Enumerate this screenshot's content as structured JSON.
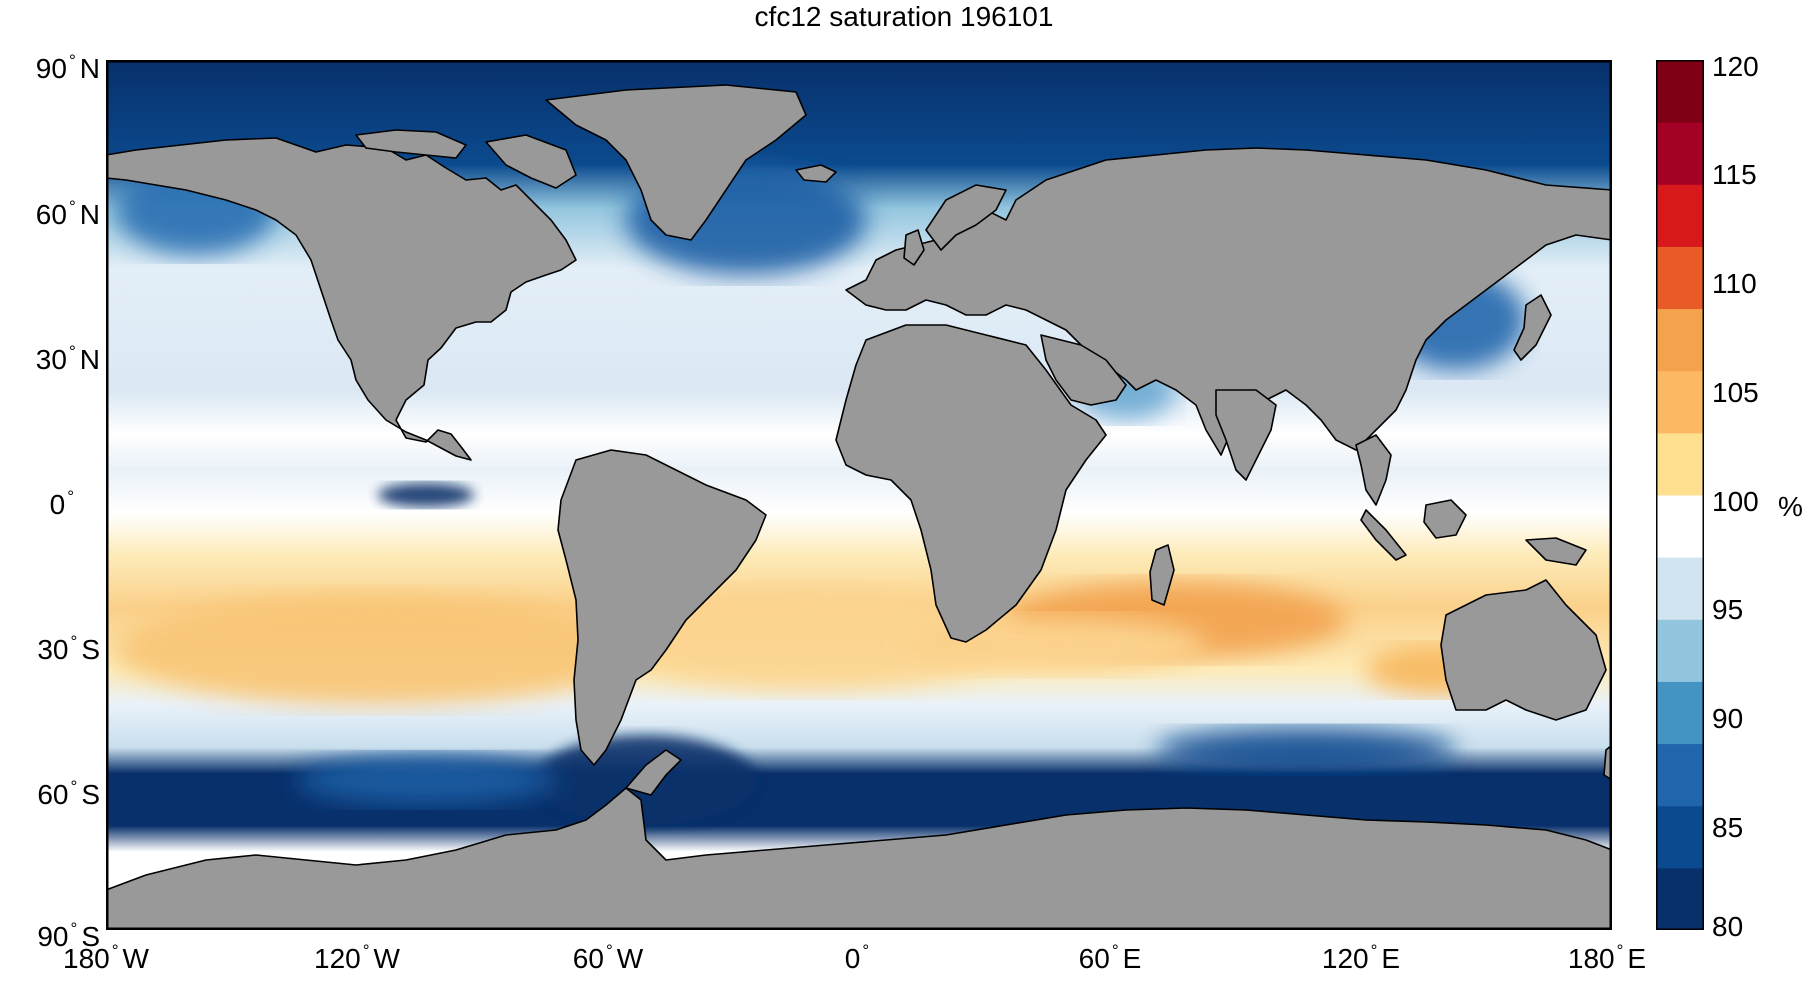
{
  "title": "cfc12 saturation 196101",
  "lat_labels": [
    {
      "value": "90",
      "hem": "N"
    },
    {
      "value": "60",
      "hem": "N"
    },
    {
      "value": "30",
      "hem": "N"
    },
    {
      "value": "0",
      "hem": ""
    },
    {
      "value": "30",
      "hem": "S"
    },
    {
      "value": "60",
      "hem": "S"
    },
    {
      "value": "90",
      "hem": "S"
    }
  ],
  "lon_labels": [
    {
      "value": "180",
      "hem": "W"
    },
    {
      "value": "120",
      "hem": "W"
    },
    {
      "value": "60",
      "hem": "W"
    },
    {
      "value": "0",
      "hem": ""
    },
    {
      "value": "60",
      "hem": "E"
    },
    {
      "value": "120",
      "hem": "E"
    },
    {
      "value": "180",
      "hem": "E"
    }
  ],
  "degree_symbol": "°",
  "colorbar": {
    "min": 80,
    "max": 120,
    "ticks": [
      "120",
      "115",
      "110",
      "105",
      "100",
      "95",
      "90",
      "85",
      "80"
    ],
    "unit": "%",
    "colors_low_to_high": [
      "#08306b",
      "#0b4a8e",
      "#2166ac",
      "#4393c3",
      "#92c5de",
      "#d1e5f0",
      "#ffffff",
      "#fee090",
      "#fdb863",
      "#f4a24c",
      "#e85a26",
      "#d7191c",
      "#a50026",
      "#7f0014"
    ]
  },
  "colors": {
    "land": "#999999",
    "coast": "#000000",
    "frame": "#000000",
    "deep_blue": "#08306b",
    "mid_blue": "#4393c3",
    "light_blue": "#d1e5f0",
    "yellow": "#fde3a0",
    "orange": "#f7b65c"
  }
}
